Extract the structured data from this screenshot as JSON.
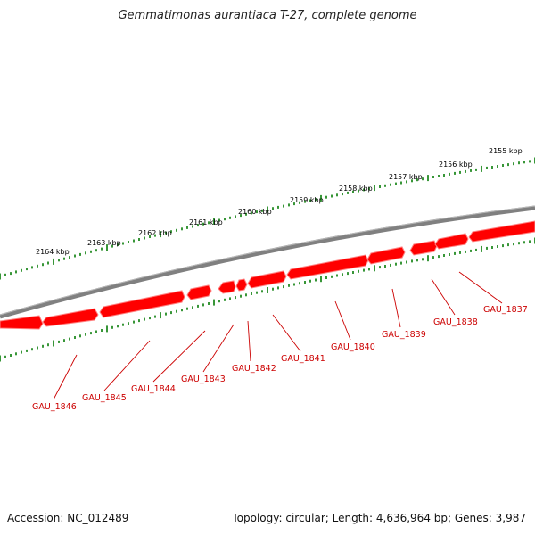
{
  "title": "Gemmatimonas aurantiaca T-27, complete genome",
  "footer": {
    "accession": "Accession: NC_012489",
    "summary": "Topology: circular; Length: 4,636,964 bp; Genes: 3,987"
  },
  "colors": {
    "gene_fill": "#ff0000",
    "gene_shadow": "#ff8080",
    "backbone": "#808080",
    "tick": "#228b22",
    "label_text": "#cc0000"
  },
  "scale_labels": [
    "2155 kbp",
    "2156 kbp",
    "2157 kbp",
    "2158 kbp",
    "2159 kbp",
    "2160 kbp",
    "2161 kbp",
    "2162 kbp",
    "2163 kbp",
    "2164 kbp"
  ],
  "gene_labels": [
    "GAU_1837",
    "GAU_1838",
    "GAU_1839",
    "GAU_1840",
    "GAU_1841",
    "GAU_1842",
    "GAU_1843",
    "GAU_1844",
    "GAU_1845",
    "GAU_1846"
  ]
}
